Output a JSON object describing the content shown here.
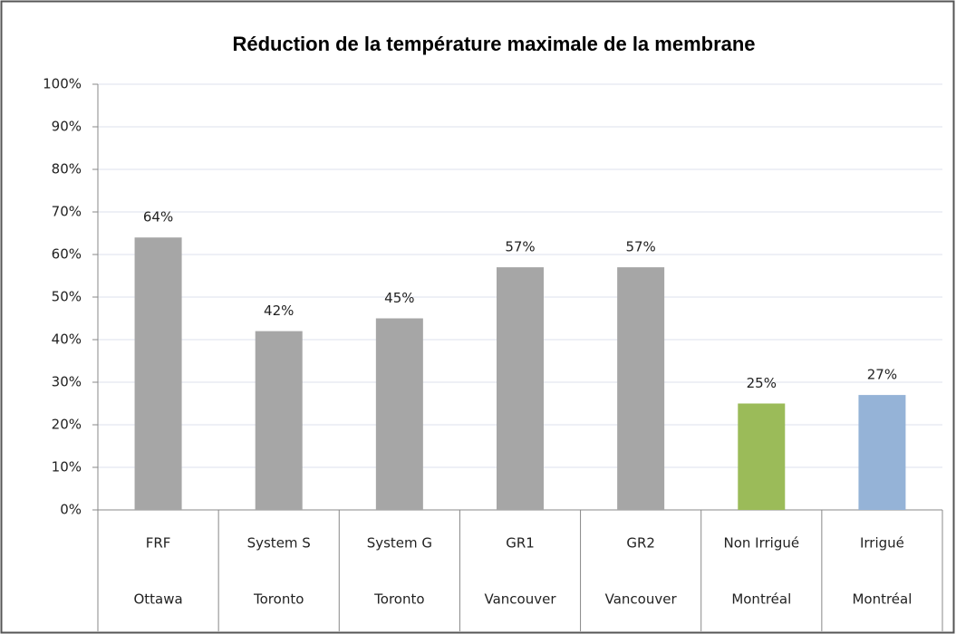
{
  "chart_data": {
    "type": "bar",
    "title": "Réduction de la température maximale de la membrane",
    "categories": [
      "FRF",
      "System S",
      "System G",
      "GR1",
      "GR2",
      "Non Irrigué",
      "Irrigué"
    ],
    "locations": [
      "Ottawa",
      "Toronto",
      "Toronto",
      "Vancouver",
      "Vancouver",
      "Montréal",
      "Montréal"
    ],
    "values": [
      64,
      42,
      45,
      57,
      57,
      25,
      27
    ],
    "value_labels": [
      "64%",
      "42%",
      "45%",
      "57%",
      "57%",
      "25%",
      "27%"
    ],
    "colors": [
      "#a6a6a6",
      "#a6a6a6",
      "#a6a6a6",
      "#a6a6a6",
      "#a6a6a6",
      "#9bbb59",
      "#95b3d7"
    ],
    "ylim": [
      0,
      100
    ],
    "yticks": [
      {
        "value": 0,
        "label": "0%"
      },
      {
        "value": 10,
        "label": "10%"
      },
      {
        "value": 20,
        "label": "20%"
      },
      {
        "value": 30,
        "label": "30%"
      },
      {
        "value": 40,
        "label": "40%"
      },
      {
        "value": 50,
        "label": "50%"
      },
      {
        "value": 60,
        "label": "60%"
      },
      {
        "value": 70,
        "label": "70%"
      },
      {
        "value": 80,
        "label": "80%"
      },
      {
        "value": 90,
        "label": "90%"
      },
      {
        "value": 100,
        "label": "100%"
      }
    ],
    "grid": true
  }
}
